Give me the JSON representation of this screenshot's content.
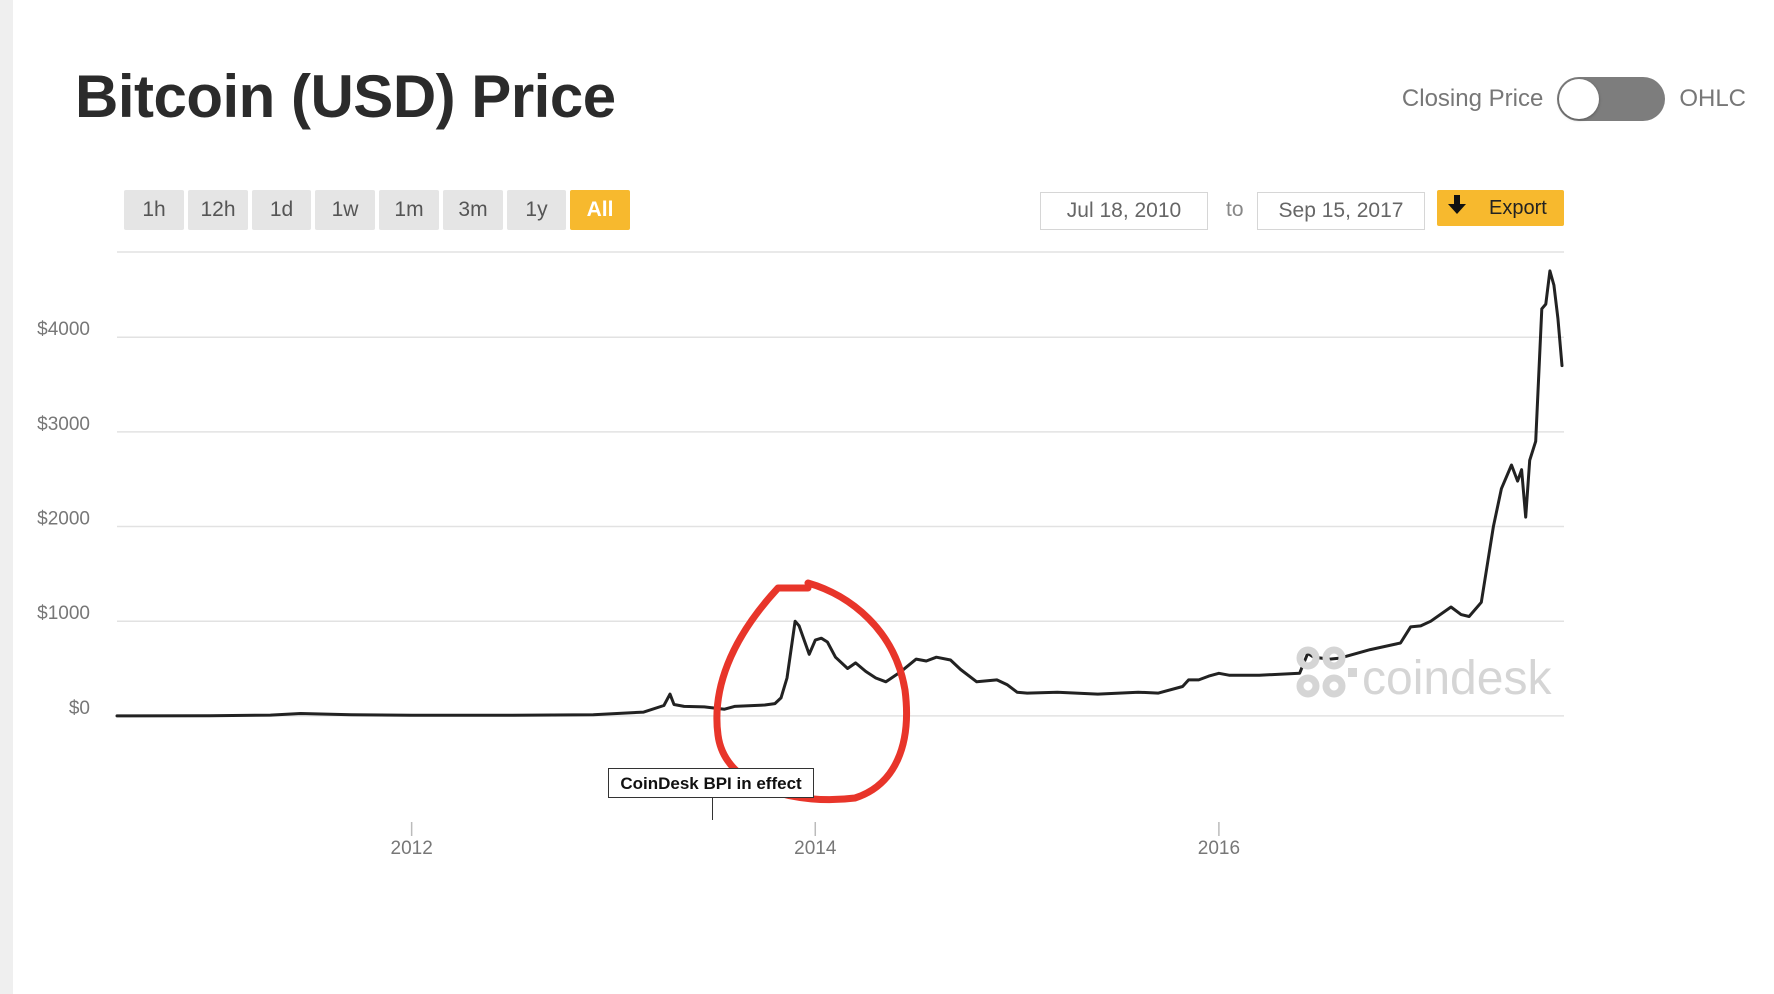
{
  "page": {
    "title": "Bitcoin (USD) Price"
  },
  "toggle": {
    "left_label": "Closing Price",
    "right_label": "OHLC",
    "selected": "Closing Price"
  },
  "range_tabs": [
    "1h",
    "12h",
    "1d",
    "1w",
    "1m",
    "3m",
    "1y",
    "All"
  ],
  "range_active": "All",
  "date_range": {
    "from": "Jul 18, 2010",
    "separator": "to",
    "to": "Sep 15, 2017"
  },
  "export": {
    "label": "Export",
    "icon": "download-arrow-icon"
  },
  "watermark": {
    "text": "coindesk",
    "icon": "coindesk-logo-icon"
  },
  "annotation": {
    "label": "CoinDesk BPI in effect",
    "date": 2013.52
  },
  "colors": {
    "accent": "#f7b92e",
    "line": "#222222",
    "grid": "#e2e2e2",
    "markup": "#e8352a"
  },
  "chart_data": {
    "type": "line",
    "title": "Bitcoin (USD) Price",
    "xlabel": "",
    "ylabel": "",
    "xlim": [
      2010.54,
      2017.71
    ],
    "ylim": [
      -1100,
      4900
    ],
    "x_ticks": [
      2012,
      2014,
      2016
    ],
    "x_tick_labels": [
      "2012",
      "2014",
      "2016"
    ],
    "y_ticks": [
      0,
      1000,
      2000,
      3000,
      4000
    ],
    "y_tick_labels": [
      "$0",
      "$1000",
      "$2000",
      "$3000",
      "$4000"
    ],
    "grid": true,
    "legend": "none",
    "series": [
      {
        "x": [
          2010.54,
          2011.0,
          2011.3,
          2011.45,
          2011.7,
          2012.0,
          2012.5,
          2012.9,
          2013.15,
          2013.25,
          2013.28,
          2013.3,
          2013.35,
          2013.45,
          2013.55,
          2013.6,
          2013.75,
          2013.8,
          2013.83,
          2013.86,
          2013.89,
          2013.9,
          2013.92,
          2013.97,
          2014.0,
          2014.03,
          2014.06,
          2014.1,
          2014.16,
          2014.2,
          2014.25,
          2014.3,
          2014.35,
          2014.42,
          2014.5,
          2014.55,
          2014.6,
          2014.67,
          2014.72,
          2014.8,
          2014.9,
          2014.95,
          2015.0,
          2015.05,
          2015.2,
          2015.4,
          2015.6,
          2015.7,
          2015.82,
          2015.85,
          2015.9,
          2015.95,
          2016.0,
          2016.05,
          2016.2,
          2016.4,
          2016.44,
          2016.47,
          2016.55,
          2016.6,
          2016.75,
          2016.9,
          2016.95,
          2017.0,
          2017.05,
          2017.15,
          2017.2,
          2017.24,
          2017.3,
          2017.36,
          2017.4,
          2017.45,
          2017.48,
          2017.5,
          2017.52,
          2017.54,
          2017.57,
          2017.6,
          2017.62,
          2017.64,
          2017.66,
          2017.68,
          2017.7
        ],
        "values": [
          0,
          1,
          8,
          25,
          12,
          6,
          7,
          12,
          40,
          110,
          230,
          120,
          100,
          95,
          70,
          100,
          115,
          130,
          190,
          400,
          850,
          1000,
          950,
          650,
          800,
          820,
          780,
          620,
          500,
          560,
          470,
          400,
          360,
          460,
          600,
          580,
          620,
          590,
          490,
          360,
          380,
          330,
          250,
          240,
          250,
          230,
          250,
          240,
          310,
          380,
          380,
          420,
          450,
          430,
          430,
          450,
          660,
          620,
          600,
          610,
          700,
          770,
          940,
          950,
          1000,
          1150,
          1070,
          1050,
          1200,
          2000,
          2400,
          2650,
          2480,
          2600,
          2100,
          2700,
          2900,
          4300,
          4350,
          4700,
          4550,
          4200,
          3700
        ]
      }
    ]
  }
}
